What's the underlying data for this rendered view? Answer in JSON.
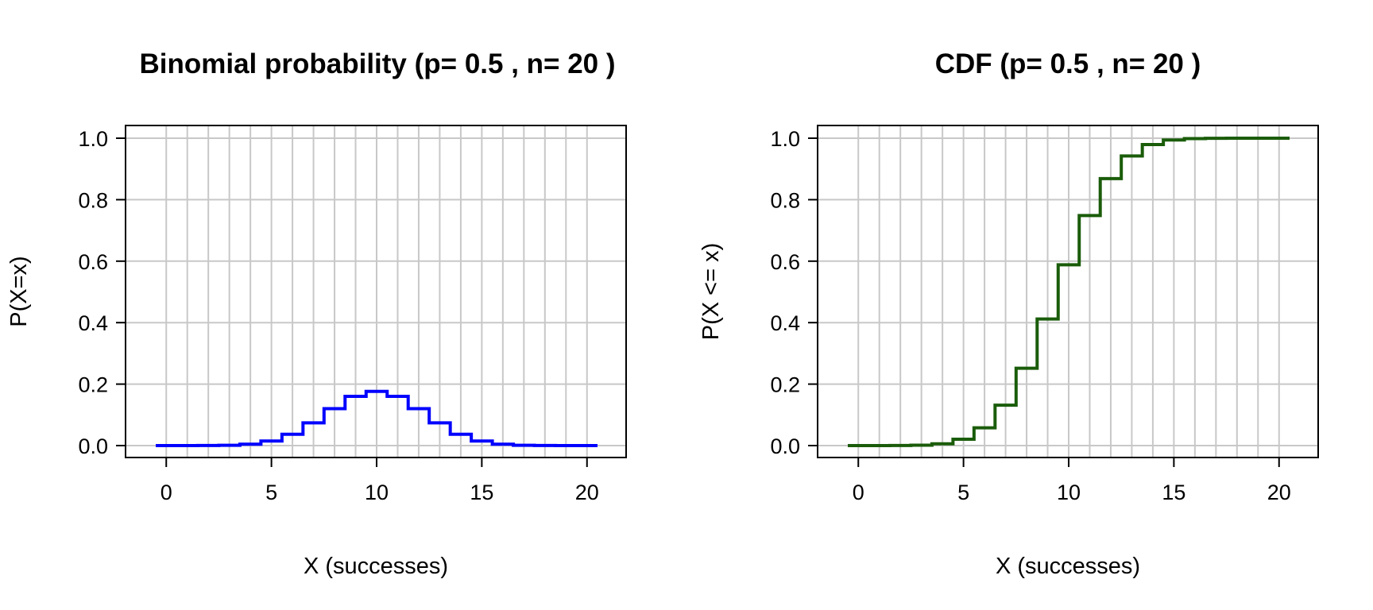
{
  "chart_data": [
    {
      "type": "line",
      "step": true,
      "title": "Binomial probability (p= 0.5 , n= 20 )",
      "xlabel": "X (successes)",
      "ylabel": "P(X=x)",
      "xlim": [
        -0.5,
        20.5
      ],
      "ylim": [
        0,
        1
      ],
      "xticks": [
        "0",
        "5",
        "10",
        "15",
        "20"
      ],
      "yticks": [
        "0.0",
        "0.2",
        "0.4",
        "0.6",
        "0.8",
        "1.0"
      ],
      "grid": true,
      "color": "#0000ff",
      "x": [
        0,
        1,
        2,
        3,
        4,
        5,
        6,
        7,
        8,
        9,
        10,
        11,
        12,
        13,
        14,
        15,
        16,
        17,
        18,
        19,
        20
      ],
      "values": [
        1e-06,
        1.9e-05,
        0.000181,
        0.001087,
        0.004621,
        0.014786,
        0.036964,
        0.073929,
        0.120134,
        0.160179,
        0.176197,
        0.160179,
        0.120134,
        0.073929,
        0.036964,
        0.014786,
        0.004621,
        0.001087,
        0.000181,
        1.9e-05,
        1e-06
      ]
    },
    {
      "type": "line",
      "step": true,
      "title": "CDF (p= 0.5 , n= 20 )",
      "xlabel": "X (successes)",
      "ylabel": "P(X <= x)",
      "xlim": [
        -0.5,
        20.5
      ],
      "ylim": [
        0,
        1
      ],
      "xticks": [
        "0",
        "5",
        "10",
        "15",
        "20"
      ],
      "yticks": [
        "0.0",
        "0.2",
        "0.4",
        "0.6",
        "0.8",
        "1.0"
      ],
      "grid": true,
      "color": "#1a5c0a",
      "x": [
        0,
        1,
        2,
        3,
        4,
        5,
        6,
        7,
        8,
        9,
        10,
        11,
        12,
        13,
        14,
        15,
        16,
        17,
        18,
        19,
        20
      ],
      "values": [
        1e-06,
        2e-05,
        0.000201,
        0.001288,
        0.005909,
        0.020695,
        0.057659,
        0.131588,
        0.251722,
        0.411901,
        0.588099,
        0.748278,
        0.868412,
        0.942341,
        0.979305,
        0.994091,
        0.998712,
        0.999799,
        0.99998,
        0.999999,
        1.0
      ]
    }
  ]
}
